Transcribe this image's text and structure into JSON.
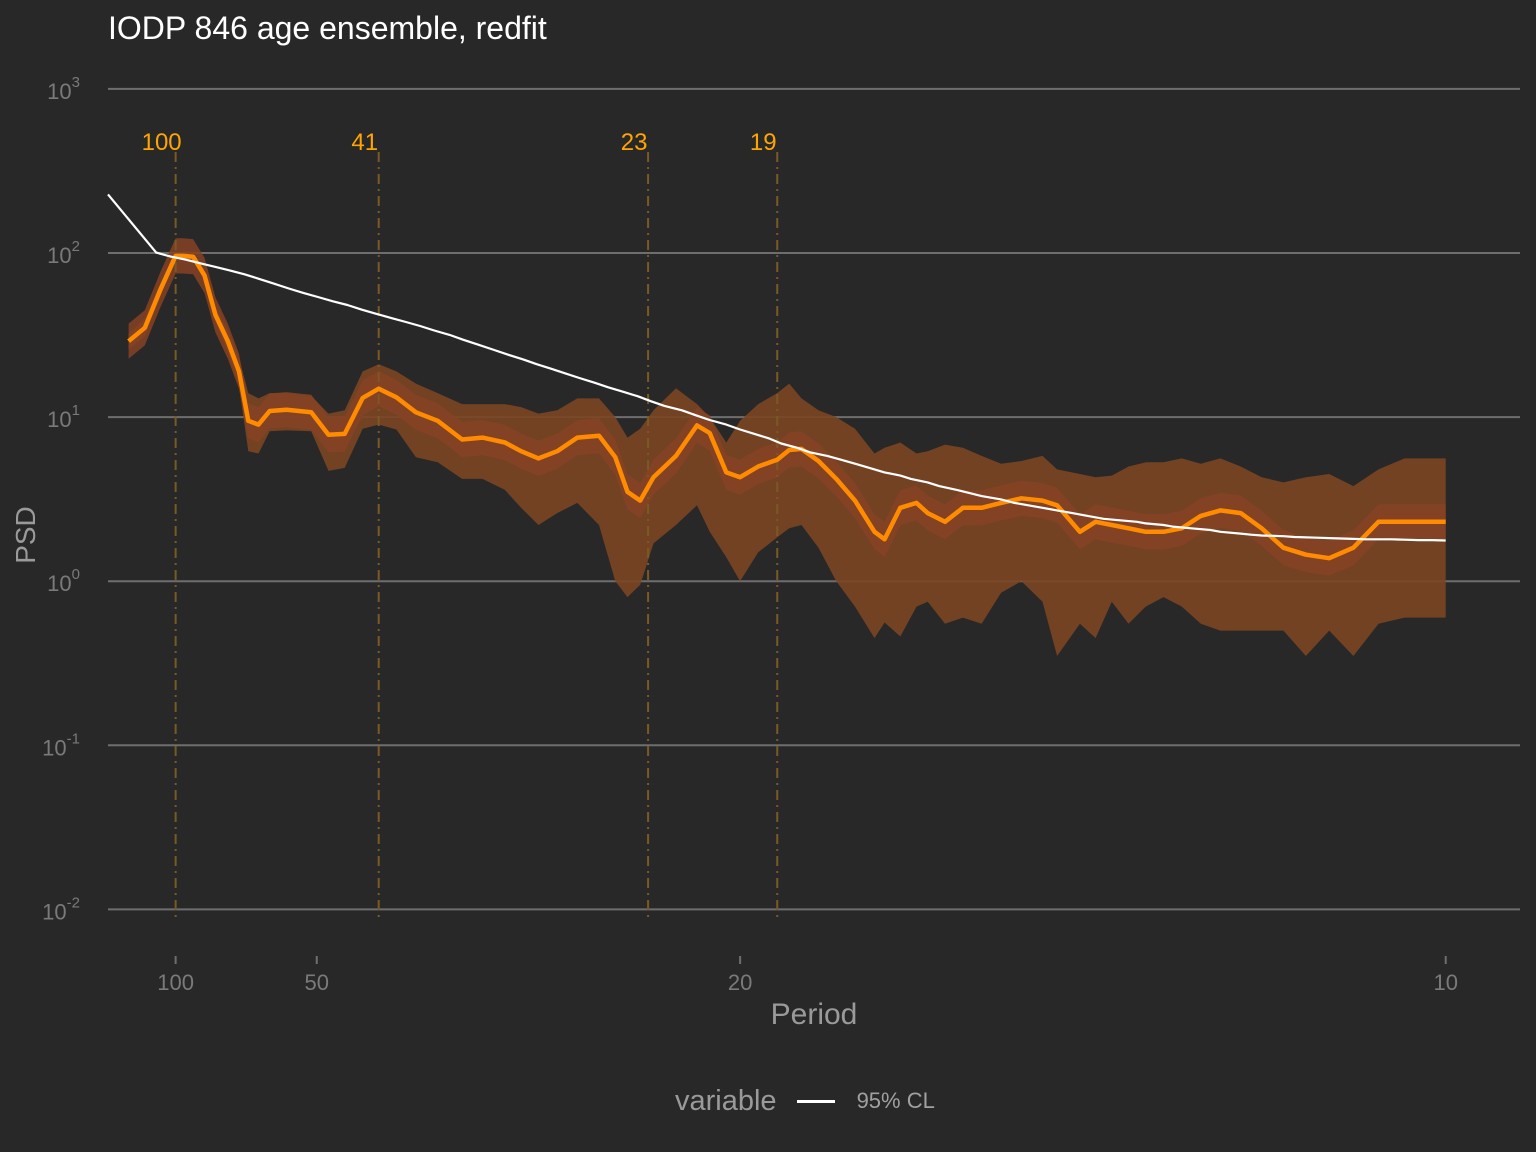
{
  "chart_data": {
    "type": "line",
    "title": "IODP 846 age ensemble, redfit",
    "xlabel": "Period",
    "ylabel": "PSD",
    "x_scale": "reciprocal (frequency), reversed",
    "y_scale": "log10",
    "x_ticks": [
      100,
      50,
      20,
      10
    ],
    "y_ticks": [
      {
        "base": "10",
        "exp": "3"
      },
      {
        "base": "10",
        "exp": "2"
      },
      {
        "base": "10",
        "exp": "1"
      },
      {
        "base": "10",
        "exp": "0"
      },
      {
        "base": "10",
        "exp": "-1"
      },
      {
        "base": "10",
        "exp": "-2"
      }
    ],
    "xlim": [
      192,
      9.5
    ],
    "ylim": [
      0.0055,
      1500
    ],
    "grid": true,
    "legend_position": "bottom",
    "legend": {
      "title": "variable",
      "entries": [
        "95% CL"
      ]
    },
    "reference_periods": [
      100,
      41,
      23,
      19
    ],
    "colors": {
      "background": "#282828",
      "grid": "#6e6e6e",
      "median": "#ff8c00",
      "band": "#7a4522",
      "inner_band": "#864225",
      "reference": "#ffa500",
      "cl": "#ffffff"
    },
    "series": [
      {
        "name": "95% CL",
        "x": [
          192,
          116,
          103.6,
          93.5,
          85.1,
          78.2,
          72.3,
          67.2,
          62.8,
          58.9,
          55.5,
          52.5,
          49.8,
          47.3,
          45.1,
          43.1,
          41.3,
          39.6,
          38.0,
          36.6,
          35.3,
          34.0,
          32.9,
          31.8,
          30.8,
          29.8,
          28.9,
          28.1,
          27.3,
          26.6,
          25.9,
          25.2,
          24.6,
          24.0,
          23.4,
          22.9,
          22.4,
          21.8,
          21.3,
          20.9,
          20.4,
          20.0,
          19.6,
          19.2,
          18.9,
          18.5,
          18.2,
          17.8,
          17.5,
          17.2,
          16.9,
          16.6,
          16.3,
          16.1,
          15.8,
          15.6,
          15.3,
          15.1,
          14.9,
          14.6,
          14.4,
          14.2,
          14.0,
          13.8,
          13.6,
          13.4,
          13.2,
          13.0,
          12.8,
          12.7,
          12.5,
          12.4,
          12.2,
          12.0,
          11.9,
          11.7,
          11.6,
          11.5,
          11.3,
          11.2,
          11.0,
          10.9,
          10.8,
          10.7,
          10.6,
          10.4,
          10.3,
          10.2,
          10.1,
          10.0
        ],
        "y": [
          227.5,
          100.6,
          95.1,
          91.1,
          86.5,
          82.4,
          78.3,
          74.2,
          69.5,
          65.0,
          60.8,
          57.1,
          53.9,
          50.8,
          48.2,
          45.1,
          42.6,
          40.2,
          38.0,
          35.9,
          33.7,
          31.7,
          29.6,
          27.6,
          25.8,
          24.0,
          22.5,
          21.0,
          19.7,
          18.5,
          17.3,
          16.2,
          15.2,
          14.3,
          13.4,
          12.5,
          11.7,
          11.0,
          10.2,
          9.6,
          9.0,
          8.4,
          7.9,
          7.4,
          6.9,
          6.5,
          6.1,
          5.8,
          5.5,
          5.2,
          4.9,
          4.6,
          4.4,
          4.2,
          4.0,
          3.8,
          3.6,
          3.45,
          3.3,
          3.15,
          3.0,
          2.9,
          2.8,
          2.7,
          2.6,
          2.5,
          2.4,
          2.35,
          2.3,
          2.25,
          2.2,
          2.15,
          2.1,
          2.05,
          2.0,
          1.95,
          1.92,
          1.9,
          1.88,
          1.86,
          1.84,
          1.83,
          1.82,
          1.81,
          1.8,
          1.8,
          1.79,
          1.78,
          1.78,
          1.77
        ]
      },
      {
        "name": "",
        "x": [
          150,
          128,
          112,
          100,
          95,
          89,
          83,
          78,
          73,
          69,
          66,
          63,
          60,
          56,
          51,
          48,
          45.5,
          43,
          41,
          39,
          37,
          35,
          33,
          31.5,
          30,
          29,
          28,
          27,
          26,
          25,
          24.3,
          23.8,
          23.3,
          22.8,
          22,
          21.3,
          20.9,
          20.4,
          20,
          19.5,
          19,
          18.7,
          18.4,
          18.0,
          17.6,
          17.2,
          16.8,
          16.6,
          16.3,
          16.0,
          15.8,
          15.5,
          15.2,
          14.9,
          14.6,
          14.3,
          14.0,
          13.8,
          13.5,
          13.3,
          13.1,
          12.9,
          12.7,
          12.5,
          12.3,
          12.1,
          11.9,
          11.7,
          11.5,
          11.3,
          11.1,
          10.9,
          10.7,
          10.5,
          10.3,
          10.2,
          10.1,
          10.0
        ],
        "y": [
          29,
          35,
          60,
          96,
          96,
          95,
          73,
          42,
          29,
          19,
          9.5,
          9.0,
          10.9,
          11.1,
          10.7,
          7.8,
          7.9,
          13.1,
          14.9,
          13.2,
          10.7,
          9.5,
          7.3,
          7.5,
          7.0,
          6.2,
          5.6,
          6.2,
          7.5,
          7.7,
          5.7,
          3.5,
          3.1,
          4.3,
          5.8,
          8.9,
          8.0,
          4.6,
          4.3,
          5.0,
          5.5,
          6.3,
          6.4,
          5.4,
          4.2,
          3.1,
          2.0,
          1.8,
          2.8,
          3.0,
          2.6,
          2.3,
          2.8,
          2.8,
          3.0,
          3.2,
          3.1,
          2.9,
          2.0,
          2.3,
          2.2,
          2.1,
          2.0,
          2.0,
          2.1,
          2.5,
          2.7,
          2.6,
          2.1,
          1.6,
          1.45,
          1.38,
          1.6,
          2.3,
          2.3,
          2.3,
          2.3,
          2.3
        ]
      }
    ],
    "band_outer": {
      "x": [
        150,
        128,
        112,
        100,
        95,
        89,
        83,
        78,
        73,
        69,
        66,
        63,
        60,
        56,
        51,
        48,
        45.5,
        43,
        41,
        39,
        37,
        35,
        33,
        31.5,
        30,
        29,
        28,
        27,
        26,
        25,
        24.3,
        23.8,
        23.3,
        22.8,
        22,
        21.3,
        20.9,
        20.4,
        20,
        19.5,
        19,
        18.7,
        18.4,
        18.0,
        17.6,
        17.2,
        16.8,
        16.6,
        16.3,
        16.0,
        15.8,
        15.5,
        15.2,
        14.9,
        14.6,
        14.3,
        14.0,
        13.8,
        13.5,
        13.3,
        13.1,
        12.9,
        12.7,
        12.5,
        12.3,
        12.1,
        11.9,
        11.7,
        11.5,
        11.3,
        11.1,
        10.9,
        10.7,
        10.5,
        10.3,
        10.1,
        10.0
      ],
      "upper": [
        32,
        40,
        66,
        100,
        100,
        100,
        78,
        47,
        34,
        23,
        14,
        13,
        14,
        14,
        13.5,
        10.5,
        11,
        19,
        21,
        19,
        16,
        14,
        12,
        12,
        12,
        11.5,
        10.5,
        11,
        13,
        13,
        10,
        7.5,
        8.5,
        11,
        15,
        12,
        10,
        7,
        9.5,
        12,
        14,
        16,
        13,
        11,
        10,
        8.5,
        6,
        6.5,
        7,
        6,
        6.2,
        6.8,
        6.5,
        5.8,
        5.2,
        5.4,
        5.8,
        4.8,
        4.5,
        4.3,
        4.4,
        5.0,
        5.3,
        5.3,
        5.6,
        5.2,
        5.6,
        5.0,
        4.3,
        4.0,
        4.3,
        4.5,
        3.8,
        4.8,
        5.6,
        5.6,
        5.6
      ],
      "lower": [
        26,
        31,
        55,
        92,
        92,
        90,
        68,
        38,
        25,
        15.5,
        6.2,
        6.0,
        8.2,
        8.3,
        8.2,
        4.7,
        4.9,
        8.5,
        9.0,
        8.4,
        5.7,
        5.3,
        4.2,
        4.2,
        3.6,
        2.8,
        2.2,
        2.6,
        3.0,
        2.2,
        1.0,
        0.8,
        0.95,
        1.7,
        2.2,
        2.9,
        2.0,
        1.4,
        1.0,
        1.5,
        1.85,
        2.1,
        2.2,
        1.6,
        1.0,
        0.7,
        0.45,
        0.56,
        0.46,
        0.7,
        0.75,
        0.55,
        0.6,
        0.55,
        0.85,
        1.0,
        0.75,
        0.35,
        0.55,
        0.45,
        0.75,
        0.55,
        0.7,
        0.8,
        0.7,
        0.55,
        0.5,
        0.5,
        0.5,
        0.5,
        0.35,
        0.5,
        0.35,
        0.55,
        0.6,
        0.6,
        0.6
      ]
    }
  }
}
